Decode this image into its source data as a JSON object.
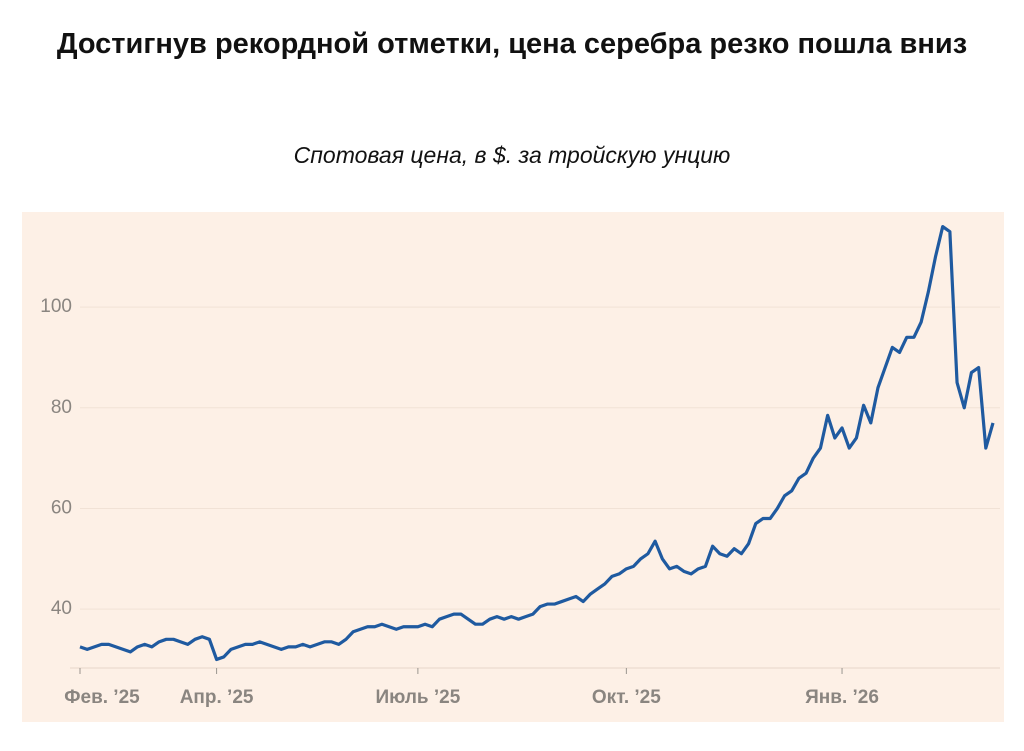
{
  "chart_data": {
    "type": "line",
    "title": "Достигнув рекордной отметки, цена серебра резко пошла вниз",
    "subtitle": "Спотовая цена, в $. за тройскую унцию",
    "categories": [
      "Фев. ’25",
      null,
      null,
      null,
      null,
      null,
      null,
      null,
      null,
      null,
      null,
      null,
      null,
      null,
      null,
      null,
      null,
      null,
      null,
      "Апр. ’25",
      null,
      null,
      null,
      null,
      null,
      null,
      null,
      null,
      null,
      null,
      null,
      null,
      null,
      null,
      null,
      null,
      null,
      null,
      null,
      null,
      null,
      null,
      null,
      null,
      null,
      null,
      null,
      "Июль ’25",
      null,
      null,
      null,
      null,
      null,
      null,
      null,
      null,
      null,
      null,
      null,
      null,
      null,
      null,
      null,
      null,
      null,
      null,
      null,
      null,
      null,
      null,
      null,
      null,
      null,
      null,
      null,
      null,
      "Окт. ’25",
      null,
      null,
      null,
      null,
      null,
      null,
      null,
      null,
      null,
      null,
      null,
      null,
      null,
      null,
      null,
      null,
      null,
      null,
      null,
      null,
      null,
      null,
      null,
      null,
      null,
      null,
      null,
      null,
      null,
      "Янв. ’26",
      null,
      null,
      null,
      null,
      null,
      null,
      null,
      null,
      null,
      null,
      null,
      null,
      null,
      null,
      null,
      null,
      null,
      null,
      null,
      null,
      null
    ],
    "values": [
      32.5,
      32,
      32.5,
      33,
      33,
      32.5,
      32,
      31.5,
      32.5,
      33,
      32.5,
      33.5,
      34,
      34,
      33.5,
      33,
      34,
      34.5,
      34,
      30,
      30.5,
      32,
      32.5,
      33,
      33,
      33.5,
      33,
      32.5,
      32,
      32.5,
      32.5,
      33,
      32.5,
      33,
      33.5,
      33.5,
      33,
      34,
      35.5,
      36,
      36.5,
      36.5,
      37,
      36.5,
      36,
      36.5,
      36.5,
      36.5,
      37,
      36.5,
      38,
      38.5,
      39,
      39,
      38,
      37,
      37,
      38,
      38.5,
      38,
      38.5,
      38,
      38.5,
      39,
      40.5,
      41,
      41,
      41.5,
      42,
      42.5,
      41.5,
      43,
      44,
      45,
      46.5,
      47,
      48,
      48.5,
      50,
      51,
      53.5,
      50,
      48,
      48.5,
      47.5,
      47,
      48,
      48.5,
      52.5,
      51,
      50.5,
      52,
      51,
      53,
      57,
      58,
      58,
      60,
      62.5,
      63.5,
      66,
      67,
      70,
      72,
      78.5,
      74,
      76,
      72,
      74,
      80.5,
      77,
      84,
      88,
      92,
      91,
      94,
      94,
      97,
      103,
      110,
      116,
      115,
      85,
      80,
      87,
      88,
      72,
      77
    ],
    "color": "#1f5aa0",
    "ylim": [
      28.3,
      118.9
    ],
    "yticks": [
      40,
      60,
      80,
      100
    ],
    "grid": true
  }
}
